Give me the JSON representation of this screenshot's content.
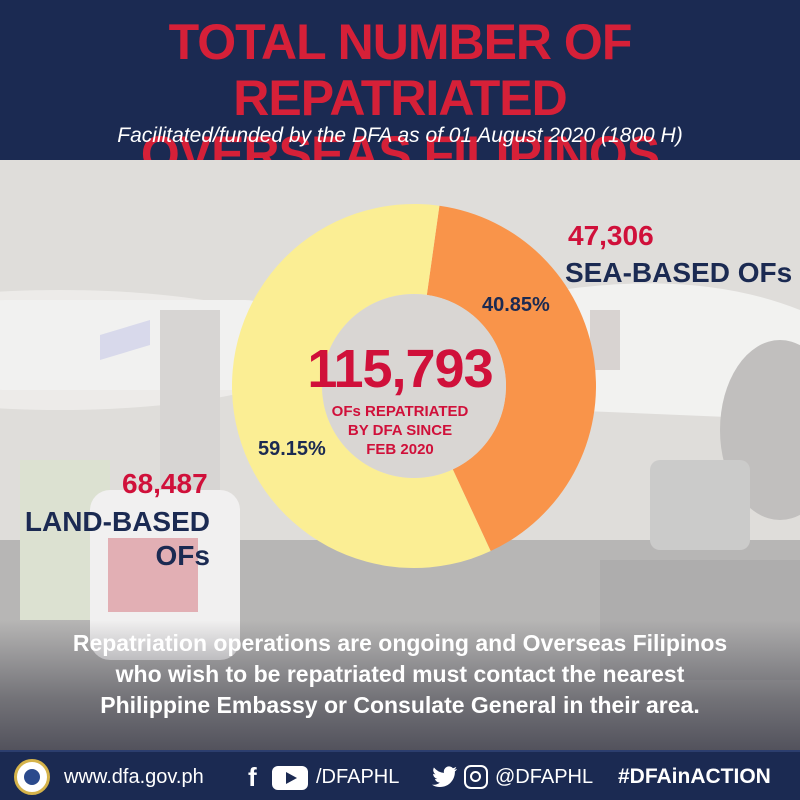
{
  "header": {
    "title_line1": "TOTAL NUMBER OF REPATRIATED",
    "title_line2": "OVERSEAS FILIPINOS",
    "subtitle": "Facilitated/funded by the DFA as of  01 August 2020 (1800 H)"
  },
  "colors": {
    "navy": "#1b2a52",
    "red": "#d0103a",
    "sea_slice": "#f9944a",
    "land_slice": "#fbee94",
    "center": "#d9d6d3"
  },
  "chart_data": {
    "type": "pie",
    "total": "115,793",
    "total_caption": [
      "OFs REPATRIATED",
      "BY DFA  SINCE",
      "FEB 2020"
    ],
    "slices": [
      {
        "name": "SEA-BASED OFs",
        "count": "47,306",
        "value": 40.85,
        "label": "40.85%",
        "color": "#f9944a"
      },
      {
        "name": "LAND-BASED OFs",
        "count": "68,487",
        "value": 59.15,
        "label": "59.15%",
        "color": "#fbee94"
      }
    ]
  },
  "callouts": {
    "sea_label": "SEA-BASED OFs",
    "land_label_line1": "LAND-BASED",
    "land_label_line2": "OFs"
  },
  "note": {
    "line1": "Repatriation operations are ongoing and Overseas Filipinos",
    "line2": "who wish to be repatriated must contact the nearest",
    "line3": "Philippine Embassy or Consulate General in their area."
  },
  "footer": {
    "website": "www.dfa.gov.ph",
    "handle_fb_yt": "/DFAPHL",
    "handle_tw_ig": "@DFAPHL",
    "hashtag": "#DFAinACTION",
    "icons": [
      "dfa-seal-icon",
      "facebook-icon",
      "youtube-icon",
      "twitter-icon",
      "instagram-icon"
    ]
  }
}
